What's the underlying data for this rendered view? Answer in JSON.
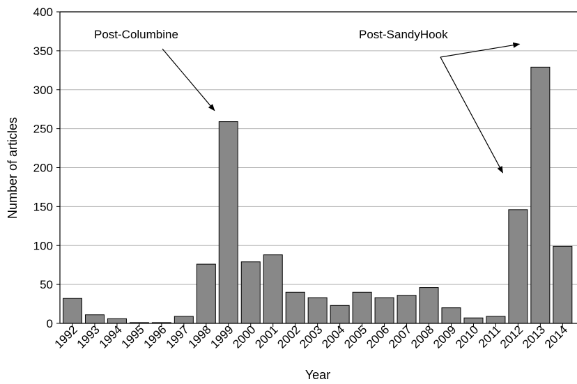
{
  "chart_data": {
    "type": "bar",
    "title": "",
    "xlabel": "Year",
    "ylabel": "Number of articles",
    "ylim": [
      0,
      400
    ],
    "yticks": [
      0,
      50,
      100,
      150,
      200,
      250,
      300,
      350,
      400
    ],
    "grid": "horizontal",
    "bar_color": "#888888",
    "categories": [
      "1992",
      "1993",
      "1994",
      "1995",
      "1996",
      "1997",
      "1998",
      "1999",
      "2000",
      "2001",
      "2002",
      "2003",
      "2004",
      "2005",
      "2006",
      "2007",
      "2008",
      "2009",
      "2010",
      "2011",
      "2012",
      "2013",
      "2014"
    ],
    "values": [
      32,
      11,
      6,
      1,
      1,
      9,
      76,
      259,
      79,
      88,
      40,
      33,
      23,
      40,
      33,
      36,
      46,
      20,
      7,
      9,
      146,
      329,
      99
    ],
    "annotations": [
      {
        "text": "Post-Columbine",
        "targets": [
          "1999"
        ]
      },
      {
        "text": "Post-SandyHook",
        "targets": [
          "2012",
          "2013"
        ]
      }
    ]
  }
}
